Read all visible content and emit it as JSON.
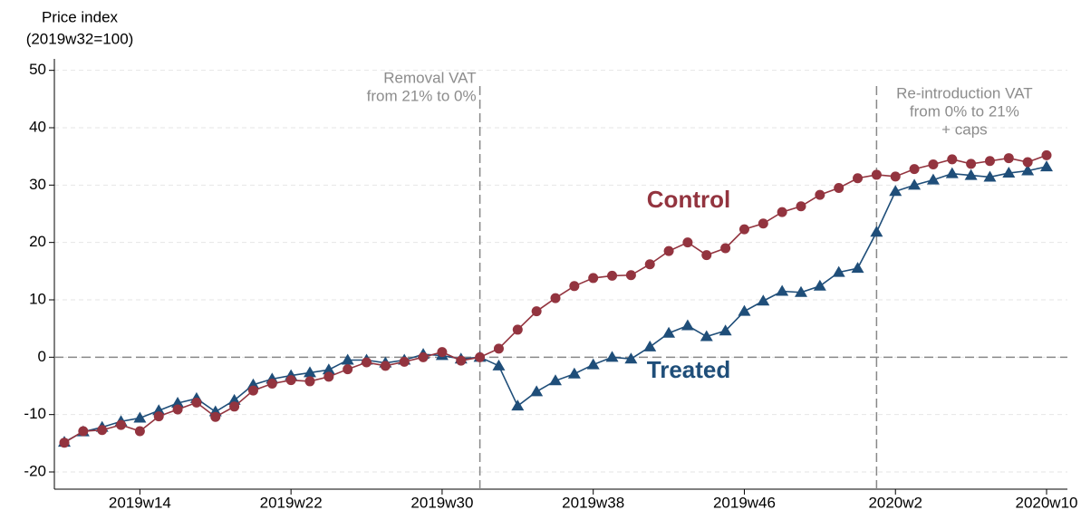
{
  "chart_data": {
    "type": "line",
    "ylabel": [
      "Price index",
      "(2019w32=100)"
    ],
    "categories": [
      null,
      null,
      null,
      null,
      "2019w14",
      null,
      null,
      null,
      null,
      null,
      null,
      null,
      "2019w22",
      null,
      null,
      null,
      null,
      null,
      null,
      null,
      "2019w30",
      null,
      null,
      null,
      null,
      null,
      null,
      null,
      "2019w38",
      null,
      null,
      null,
      null,
      null,
      null,
      null,
      "2019w46",
      null,
      null,
      null,
      null,
      null,
      null,
      null,
      "2020w2",
      null,
      null,
      null,
      null,
      null,
      null,
      null,
      "2020w10"
    ],
    "series": [
      {
        "name": "Treated",
        "color": "#1f4e79",
        "marker": "triangle",
        "values": [
          -14.8,
          -13,
          -12.2,
          -11.2,
          -10.6,
          -9.3,
          -8,
          -7.2,
          -9.5,
          -7.5,
          -4.8,
          -3.8,
          -3.2,
          -2.7,
          -2.2,
          -0.5,
          -0.5,
          -1,
          -0.5,
          0.5,
          0.3,
          -0.3,
          0,
          -1.5,
          -8.5,
          -6,
          -4.1,
          -2.9,
          -1.3,
          0,
          -0.3,
          1.8,
          4.2,
          5.5,
          3.6,
          4.6,
          8,
          9.8,
          11.5,
          11.3,
          12.4,
          14.8,
          15.5,
          21.8,
          28.9,
          30,
          30.9,
          32,
          31.7,
          31.4,
          32.1,
          32.5,
          33.2
        ]
      },
      {
        "name": "Control",
        "color": "#93343f",
        "marker": "circle",
        "values": [
          -14.9,
          -12.9,
          -12.7,
          -11.8,
          -12.9,
          -10.3,
          -9.1,
          -7.9,
          -10.4,
          -8.6,
          -5.8,
          -4.6,
          -4,
          -4.2,
          -3.4,
          -2.1,
          -0.9,
          -1.5,
          -0.8,
          0,
          0.9,
          -0.6,
          0,
          1.5,
          4.8,
          8,
          10.3,
          12.4,
          13.8,
          14.2,
          14.3,
          16.2,
          18.5,
          20,
          17.8,
          19,
          22.3,
          23.3,
          25.3,
          26.3,
          28.3,
          29.5,
          31.2,
          31.8,
          31.5,
          32.8,
          33.6,
          34.5,
          33.7,
          34.2,
          34.7,
          34,
          35.2
        ]
      }
    ],
    "vlines": [
      {
        "x": 22,
        "text": [
          "Removal VAT",
          "from 21% to 0%"
        ]
      },
      {
        "x": 43,
        "text": [
          "Re-introduction VAT",
          "from 0% to 21%",
          "+ caps"
        ]
      }
    ],
    "hline": 0,
    "ylim": [
      -23,
      52
    ],
    "yticks": [
      -20,
      -10,
      0,
      10,
      20,
      30,
      40,
      50
    ],
    "grid": true
  }
}
